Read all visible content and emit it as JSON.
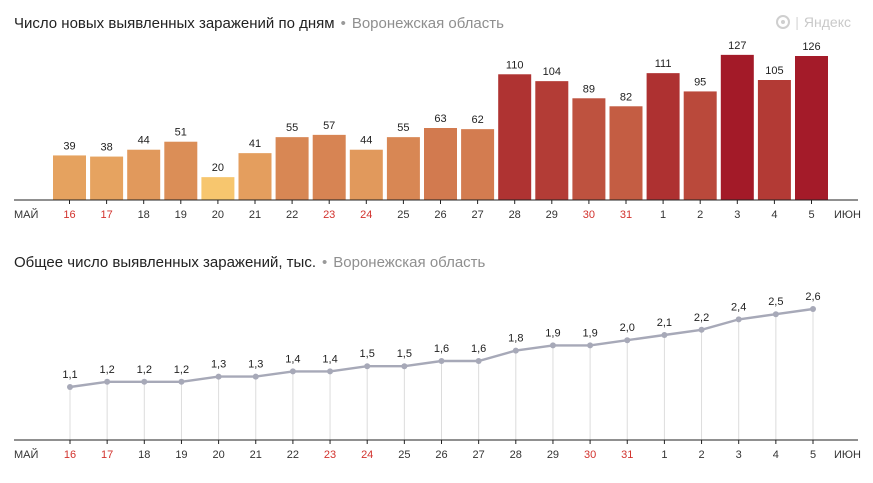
{
  "brand": {
    "name": "Яндекс"
  },
  "chart_data": [
    {
      "type": "bar",
      "title": "Число новых выявленных заражений по дням",
      "subtitle": "Воронежская область",
      "start_label": "МАЙ",
      "end_label": "ИЮН",
      "categories": [
        "16",
        "17",
        "18",
        "19",
        "20",
        "21",
        "22",
        "23",
        "24",
        "25",
        "26",
        "27",
        "28",
        "29",
        "30",
        "31",
        "1",
        "2",
        "3",
        "4",
        "5"
      ],
      "weekend_categories": [
        "16",
        "17",
        "23",
        "24",
        "30",
        "31"
      ],
      "values": [
        39,
        38,
        44,
        51,
        20,
        41,
        55,
        57,
        44,
        55,
        63,
        62,
        110,
        104,
        89,
        82,
        111,
        95,
        127,
        105,
        126
      ],
      "ylim": [
        0,
        140
      ],
      "colors": {
        "low": "#f7c66e",
        "high": "#a31a28",
        "weekend_tick": "#d2322d",
        "tick": "#333333"
      }
    },
    {
      "type": "line",
      "title": "Общее число выявленных заражений, тыс.",
      "subtitle": "Воронежская область",
      "start_label": "МАЙ",
      "end_label": "ИЮН",
      "categories": [
        "16",
        "17",
        "18",
        "19",
        "20",
        "21",
        "22",
        "23",
        "24",
        "25",
        "26",
        "27",
        "28",
        "29",
        "30",
        "31",
        "1",
        "2",
        "3",
        "4",
        "5"
      ],
      "weekend_categories": [
        "16",
        "17",
        "23",
        "24",
        "30",
        "31"
      ],
      "values": [
        1.1,
        1.2,
        1.2,
        1.2,
        1.3,
        1.3,
        1.4,
        1.4,
        1.5,
        1.5,
        1.6,
        1.6,
        1.8,
        1.9,
        1.9,
        2.0,
        2.1,
        2.2,
        2.4,
        2.5,
        2.6
      ],
      "labels": [
        "1,1",
        "1,2",
        "1,2",
        "1,2",
        "1,3",
        "1,3",
        "1,4",
        "1,4",
        "1,5",
        "1,5",
        "1,6",
        "1,6",
        "1,8",
        "1,9",
        "1,9",
        "2,0",
        "2,1",
        "2,2",
        "2,4",
        "2,5",
        "2,6"
      ],
      "ylim": [
        0.9,
        2.8
      ],
      "colors": {
        "line": "#a7a9b8",
        "drop": "#dcdcdc",
        "weekend_tick": "#d2322d",
        "tick": "#333333"
      }
    }
  ]
}
